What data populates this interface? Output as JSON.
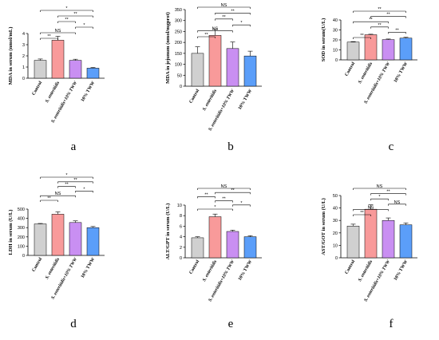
{
  "colors": {
    "Control": "#d0d0d0",
    "S_enteritidis": "#f89a9a",
    "mix": "#c98ff2",
    "TWW": "#5b9ef9"
  },
  "categories": [
    "Control",
    "S. enteritidis",
    "S. enteritidis+10% TWW",
    "10% TWW"
  ],
  "chart_data": [
    {
      "type": "bar",
      "panel": "a",
      "ylabel": "MDA in serum (nmol/mL)",
      "ylim": [
        0,
        4
      ],
      "yticks": [
        0,
        1,
        2,
        3,
        4
      ],
      "categories": [
        "Control",
        "S. enteritidis",
        "S. enteritidis+10% TWW",
        "10% TWW"
      ],
      "values": [
        1.6,
        3.4,
        1.6,
        0.9
      ],
      "errors": [
        0.12,
        0.35,
        0.1,
        0.06
      ],
      "brackets": [
        {
          "from": 0,
          "to": 3,
          "label": "*"
        },
        {
          "from": 1,
          "to": 3,
          "label": "**"
        },
        {
          "from": 1,
          "to": 2,
          "label": "**"
        },
        {
          "from": 2,
          "to": 3,
          "label": "*"
        },
        {
          "from": 0,
          "to": 2,
          "label": "NS"
        },
        {
          "from": 0,
          "to": 1,
          "label": "**"
        }
      ]
    },
    {
      "type": "bar",
      "panel": "b",
      "ylabel": "MDA in jejunum (nmol/mgprot)",
      "ylim": [
        0,
        350
      ],
      "yticks": [
        0,
        50,
        100,
        150,
        200,
        250,
        300,
        350
      ],
      "categories": [
        "Control",
        "S. enteritidis",
        "S. enteritidis+10% TWW",
        "10% TWW"
      ],
      "values": [
        150,
        232,
        172,
        138
      ],
      "errors": [
        30,
        28,
        30,
        22
      ],
      "brackets": [
        {
          "from": 0,
          "to": 3,
          "label": "NS"
        },
        {
          "from": 1,
          "to": 3,
          "label": "**"
        },
        {
          "from": 1,
          "to": 2,
          "label": "**"
        },
        {
          "from": 2,
          "to": 3,
          "label": "*"
        },
        {
          "from": 0,
          "to": 2,
          "label": "NS"
        },
        {
          "from": 0,
          "to": 1,
          "label": "**"
        }
      ]
    },
    {
      "type": "bar",
      "panel": "c",
      "ylabel": "SOD in serum(U/L)",
      "ylim": [
        0,
        40
      ],
      "yticks": [
        0,
        10,
        20,
        30,
        40
      ],
      "categories": [
        "Control",
        "S. enteritidis",
        "S. enteritidis+10% TWW",
        "10% TWW"
      ],
      "values": [
        17.8,
        25.2,
        20.3,
        21.8
      ],
      "errors": [
        0.5,
        0.5,
        0.6,
        0.8
      ],
      "brackets": [
        {
          "from": 0,
          "to": 3,
          "label": "**"
        },
        {
          "from": 1,
          "to": 3,
          "label": "**"
        },
        {
          "from": 0,
          "to": 2,
          "label": "**"
        },
        {
          "from": 1,
          "to": 2,
          "label": "**"
        },
        {
          "from": 2,
          "to": 3,
          "label": "**"
        },
        {
          "from": 0,
          "to": 1,
          "label": "**"
        }
      ]
    },
    {
      "type": "bar",
      "panel": "d",
      "ylabel": "LDH in serum (U/L)",
      "ylim": [
        0,
        500
      ],
      "yticks": [
        0,
        100,
        200,
        300,
        400,
        500
      ],
      "categories": [
        "Control",
        "S. enteritidis",
        "S. enteritidis+10% TWW",
        "10% TWW"
      ],
      "values": [
        340,
        445,
        355,
        300
      ],
      "errors": [
        5,
        25,
        18,
        12
      ],
      "brackets": [
        {
          "from": 0,
          "to": 3,
          "label": "*"
        },
        {
          "from": 1,
          "to": 3,
          "label": "**"
        },
        {
          "from": 1,
          "to": 2,
          "label": "**"
        },
        {
          "from": 2,
          "to": 3,
          "label": "*"
        },
        {
          "from": 0,
          "to": 2,
          "label": "NS"
        },
        {
          "from": 0,
          "to": 1,
          "label": "**"
        }
      ]
    },
    {
      "type": "bar",
      "panel": "e",
      "ylabel": "ALT/GPT in serum (U/L)",
      "ylim": [
        0,
        10
      ],
      "yticks": [
        0,
        2,
        4,
        6,
        8,
        10
      ],
      "categories": [
        "Control",
        "S. enteritidis",
        "S. enteritidis+10% TWW",
        "10% TWW"
      ],
      "values": [
        3.8,
        7.8,
        5.0,
        4.0
      ],
      "errors": [
        0.2,
        0.5,
        0.25,
        0.2
      ],
      "brackets": [
        {
          "from": 0,
          "to": 3,
          "label": "NS"
        },
        {
          "from": 1,
          "to": 3,
          "label": "**"
        },
        {
          "from": 0,
          "to": 1,
          "label": "**"
        },
        {
          "from": 1,
          "to": 2,
          "label": "**"
        },
        {
          "from": 2,
          "to": 3,
          "label": "*"
        },
        {
          "from": 0,
          "to": 2,
          "label": "*"
        }
      ]
    },
    {
      "type": "bar",
      "panel": "f",
      "ylabel": "AST/GOT in serum (U/L)",
      "ylim": [
        0,
        50
      ],
      "yticks": [
        0,
        10,
        20,
        30,
        40,
        50
      ],
      "categories": [
        "Control",
        "S. enteritidis",
        "S. enteritidis+10% TWW",
        "10% TWW"
      ],
      "values": [
        25.5,
        39,
        30,
        26.5
      ],
      "errors": [
        1.5,
        3.5,
        2,
        1.5
      ],
      "brackets": [
        {
          "from": 0,
          "to": 3,
          "label": "NS"
        },
        {
          "from": 1,
          "to": 3,
          "label": "**"
        },
        {
          "from": 1,
          "to": 2,
          "label": "*"
        },
        {
          "from": 2,
          "to": 3,
          "label": "NS"
        },
        {
          "from": 0,
          "to": 2,
          "label": "NS"
        },
        {
          "from": 0,
          "to": 1,
          "label": "**"
        }
      ]
    }
  ]
}
